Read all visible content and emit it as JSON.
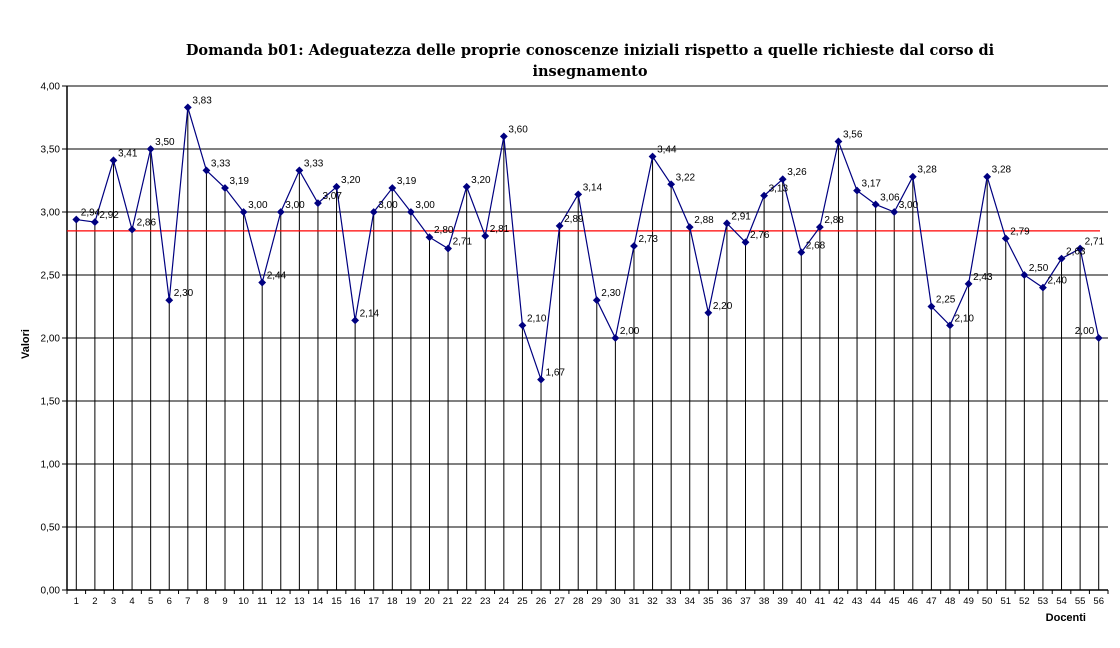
{
  "title": {
    "text": "Domanda b01: Adeguatezza delle proprie conoscenze iniziali rispetto a quelle richieste dal corso di\ninsegnamento"
  },
  "chart_data": {
    "type": "line",
    "title": "Domanda b01: Adeguatezza delle proprie conoscenze iniziali rispetto a quelle richieste dal corso di insegnamento",
    "xlabel": "Docenti",
    "ylabel": "Valori",
    "x": [
      1,
      2,
      3,
      4,
      5,
      6,
      7,
      8,
      9,
      10,
      11,
      12,
      13,
      14,
      15,
      16,
      17,
      18,
      19,
      20,
      21,
      22,
      23,
      24,
      25,
      26,
      27,
      28,
      29,
      30,
      31,
      32,
      33,
      34,
      35,
      36,
      37,
      38,
      39,
      40,
      41,
      42,
      43,
      44,
      45,
      46,
      47,
      48,
      49,
      50,
      51,
      52,
      53,
      54,
      55,
      56
    ],
    "series": [
      {
        "name": "Valori",
        "color": "#000080",
        "values": [
          2.94,
          2.92,
          3.41,
          2.86,
          3.5,
          2.3,
          3.83,
          3.33,
          3.19,
          3.0,
          2.44,
          3.0,
          3.33,
          3.07,
          3.2,
          2.14,
          3.0,
          3.19,
          3.0,
          2.8,
          2.71,
          3.2,
          2.81,
          3.6,
          2.1,
          1.67,
          2.89,
          3.14,
          2.3,
          2.0,
          2.73,
          3.44,
          3.22,
          2.88,
          2.2,
          2.91,
          2.76,
          3.13,
          3.26,
          2.68,
          2.88,
          3.56,
          3.17,
          3.06,
          3.0,
          3.28,
          2.25,
          2.1,
          2.43,
          3.28,
          2.79,
          2.5,
          2.4,
          2.63,
          2.71,
          2.0
        ],
        "point_labels": [
          "2,94",
          "2,92",
          "3,41",
          "2,86",
          "3,50",
          "2,30",
          "3,83",
          "3,33",
          "3,19",
          "3,00",
          "2,44",
          "3,00",
          "3,33",
          "3,07",
          "3,20",
          "2,14",
          "3,00",
          "3,19",
          "3,00",
          "2,80",
          "2,71",
          "3,20",
          "2,81",
          "3,60",
          "2,10",
          "1,67",
          "2,89",
          "3,14",
          "2,30",
          "2,00",
          "2,73",
          "3,44",
          "3,22",
          "2,88",
          "2,20",
          "2,91",
          "2,76",
          "3,13",
          "3,26",
          "2,68",
          "2,88",
          "3,56",
          "3,17",
          "3,06",
          "3,00",
          "3,28",
          "2,25",
          "2,10",
          "2,43",
          "3,28",
          "2,79",
          "2,50",
          "2,40",
          "2,63",
          "2,71",
          "2,00"
        ]
      }
    ],
    "average_line": {
      "value": 2.85,
      "color": "#ff0000"
    },
    "ylim": [
      0,
      4
    ],
    "ytick_labels": [
      "0,00",
      "0,50",
      "1,00",
      "1,50",
      "2,00",
      "2,50",
      "3,00",
      "3,50",
      "4,00"
    ],
    "grid": true,
    "drop_lines": true,
    "legend_position": "none",
    "gridline_color": "#000000",
    "marker": "diamond"
  }
}
